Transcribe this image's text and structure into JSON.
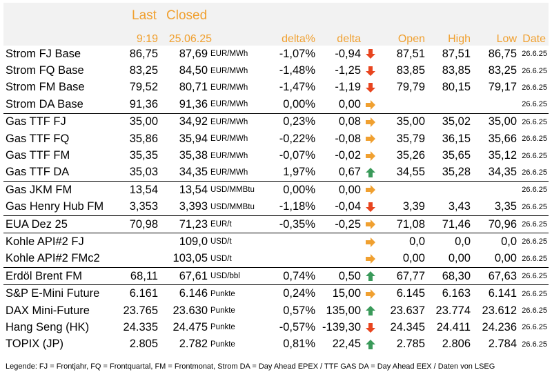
{
  "header": {
    "last_label": "Last",
    "closed_label": "Closed",
    "last_time": "9:19",
    "closed_date": "25.06.25",
    "col_delta_pct": "delta%",
    "col_delta": "delta",
    "col_open": "Open",
    "col_high": "High",
    "col_low": "Low",
    "col_date": "Date"
  },
  "colors": {
    "accent": "#f0a030",
    "down": "#e8451f",
    "flat": "#f0a030",
    "up": "#3a9a5a"
  },
  "rows": [
    {
      "name": "Strom FJ Base",
      "last": "86,75",
      "closed": "87,69",
      "unit": "EUR/MWh",
      "delta_pct": "-1,07%",
      "delta": "-0,94",
      "trend": "down",
      "open": "87,51",
      "high": "87,51",
      "low": "86,75",
      "date": "26.6.25"
    },
    {
      "name": "Strom FQ Base",
      "last": "83,25",
      "closed": "84,50",
      "unit": "EUR/MWh",
      "delta_pct": "-1,48%",
      "delta": "-1,25",
      "trend": "down",
      "open": "83,85",
      "high": "83,85",
      "low": "83,25",
      "date": "26.6.25"
    },
    {
      "name": "Strom FM Base",
      "last": "79,52",
      "closed": "80,71",
      "unit": "EUR/MWh",
      "delta_pct": "-1,47%",
      "delta": "-1,19",
      "trend": "down",
      "open": "79,79",
      "high": "80,15",
      "low": "79,17",
      "date": "26.6.25"
    },
    {
      "name": "Strom DA Base",
      "last": "91,36",
      "closed": "91,36",
      "unit": "EUR/MWh",
      "delta_pct": "0,00%",
      "delta": "0,00",
      "trend": "flat",
      "open": "",
      "high": "",
      "low": "",
      "date": "26.6.25"
    },
    {
      "name": "Gas TTF FJ",
      "last": "35,00",
      "closed": "34,92",
      "unit": "EUR/MWh",
      "delta_pct": "0,23%",
      "delta": "0,08",
      "trend": "flat",
      "open": "35,00",
      "high": "35,02",
      "low": "35,00",
      "date": "26.6.25",
      "sep": true
    },
    {
      "name": "Gas TTF FQ",
      "last": "35,86",
      "closed": "35,94",
      "unit": "EUR/MWh",
      "delta_pct": "-0,22%",
      "delta": "-0,08",
      "trend": "flat",
      "open": "35,79",
      "high": "36,15",
      "low": "35,66",
      "date": "26.6.25"
    },
    {
      "name": "Gas TTF FM",
      "last": "35,35",
      "closed": "35,38",
      "unit": "EUR/MWh",
      "delta_pct": "-0,07%",
      "delta": "-0,02",
      "trend": "flat",
      "open": "35,26",
      "high": "35,65",
      "low": "35,12",
      "date": "26.6.25"
    },
    {
      "name": "Gas TTF DA",
      "last": "35,03",
      "closed": "34,35",
      "unit": "EUR/MWh",
      "delta_pct": "1,97%",
      "delta": "0,67",
      "trend": "up",
      "open": "34,55",
      "high": "35,28",
      "low": "34,35",
      "date": "26.6.25"
    },
    {
      "name": "Gas JKM FM",
      "last": "13,54",
      "closed": "13,54",
      "unit": "USD/MMBtu",
      "delta_pct": "0,00%",
      "delta": "0,00",
      "trend": "flat",
      "open": "",
      "high": "",
      "low": "",
      "date": "26.6.25",
      "sep": true
    },
    {
      "name": "Gas Henry Hub FM",
      "last": "3,353",
      "closed": "3,393",
      "unit": "USD/MMBtu",
      "delta_pct": "-1,18%",
      "delta": "-0,04",
      "trend": "down",
      "open": "3,39",
      "high": "3,43",
      "low": "3,35",
      "date": "26.6.25"
    },
    {
      "name": "EUA Dez 25",
      "last": "70,98",
      "closed": "71,23",
      "unit": "EUR/t",
      "delta_pct": "-0,35%",
      "delta": "-0,25",
      "trend": "flat",
      "open": "71,08",
      "high": "71,46",
      "low": "70,96",
      "date": "26.6.25",
      "sep": true
    },
    {
      "name": "Kohle API#2 FJ",
      "last": "",
      "closed": "109,0",
      "unit": "USD/t",
      "delta_pct": "",
      "delta": "",
      "trend": "flat",
      "open": "0,0",
      "high": "0,0",
      "low": "0,0",
      "date": "26.6.25",
      "sep": true
    },
    {
      "name": "Kohle API#2 FMc2",
      "last": "",
      "closed": "103,05",
      "unit": "USD/t",
      "delta_pct": "",
      "delta": "",
      "trend": "flat",
      "open": "0,00",
      "high": "0,00",
      "low": "0,00",
      "date": "26.6.25"
    },
    {
      "name": "Erdöl Brent FM",
      "last": "68,11",
      "closed": "67,61",
      "unit": "USD/bbl",
      "delta_pct": "0,74%",
      "delta": "0,50",
      "trend": "up",
      "open": "67,77",
      "high": "68,30",
      "low": "67,63",
      "date": "26.6.25",
      "sep": true
    },
    {
      "name": "S&P E-Mini Future",
      "last": "6.161",
      "closed": "6.146",
      "unit": "Punkte",
      "delta_pct": "0,24%",
      "delta": "15,00",
      "trend": "flat",
      "open": "6.145",
      "high": "6.163",
      "low": "6.141",
      "date": "26.6.25",
      "sep": true
    },
    {
      "name": "DAX Mini-Future",
      "last": "23.765",
      "closed": "23.630",
      "unit": "Punkte",
      "delta_pct": "0,57%",
      "delta": "135,00",
      "trend": "up",
      "open": "23.637",
      "high": "23.774",
      "low": "23.612",
      "date": "26.6.25"
    },
    {
      "name": "Hang Seng (HK)",
      "last": "24.335",
      "closed": "24.475",
      "unit": "Punkte",
      "delta_pct": "-0,57%",
      "delta": "-139,30",
      "trend": "down",
      "open": "24.345",
      "high": "24.411",
      "low": "24.236",
      "date": "26.6.25"
    },
    {
      "name": "TOPIX (JP)",
      "last": "2.805",
      "closed": "2.782",
      "unit": "Punkte",
      "delta_pct": "0,81%",
      "delta": "22,45",
      "trend": "up",
      "open": "2.785",
      "high": "2.806",
      "low": "2.784",
      "date": "26.6.25"
    }
  ],
  "legend": "Legende: FJ = Frontjahr, FQ = Frontquartal, FM = Frontmonat, Strom DA = Day Ahead EPEX / TTF GAS DA = Day Ahead EEX / Daten von LSEG"
}
